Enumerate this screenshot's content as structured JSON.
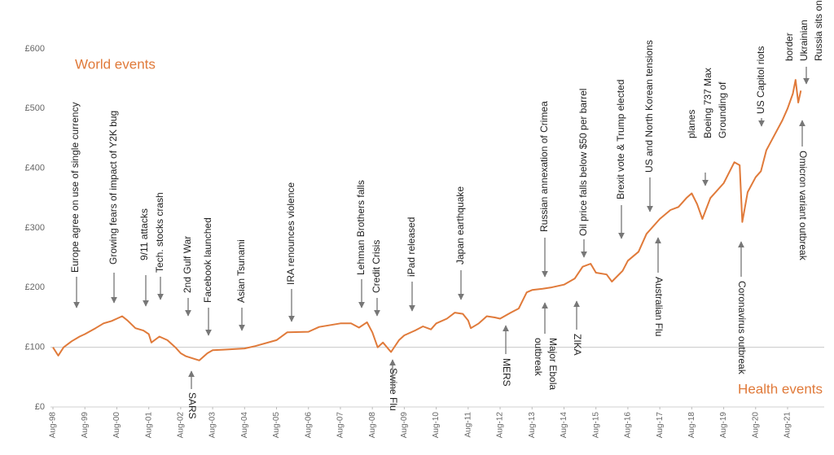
{
  "chart_data": {
    "type": "line",
    "color": "#e07a3a",
    "x": [
      "Aug-98",
      "Oct-98",
      "Dec-98",
      "Mar-99",
      "Jun-99",
      "Aug-99",
      "Dec-99",
      "Mar-00",
      "Jun-00",
      "Aug-00",
      "Oct-00",
      "Dec-00",
      "Mar-01",
      "Jun-01",
      "Aug-01",
      "Sep-01",
      "Dec-01",
      "Mar-02",
      "Jun-02",
      "Aug-02",
      "Oct-02",
      "Mar-03",
      "Jun-03",
      "Aug-03",
      "Dec-03",
      "Aug-04",
      "Dec-04",
      "Aug-05",
      "Dec-05",
      "Aug-06",
      "Dec-06",
      "Aug-07",
      "Dec-07",
      "Mar-08",
      "Jun-08",
      "Aug-08",
      "Oct-08",
      "Dec-08",
      "Mar-09",
      "Jun-09",
      "Aug-09",
      "Dec-09",
      "Mar-10",
      "Jun-10",
      "Aug-10",
      "Dec-10",
      "Mar-11",
      "Jun-11",
      "Aug-11",
      "Sep-11",
      "Dec-11",
      "Mar-12",
      "Jun-12",
      "Aug-12",
      "Dec-12",
      "Mar-13",
      "Jun-13",
      "Aug-13",
      "Dec-13",
      "Mar-14",
      "Aug-14",
      "Dec-14",
      "Mar-15",
      "Jun-15",
      "Aug-15",
      "Dec-15",
      "Feb-16",
      "Jun-16",
      "Aug-16",
      "Dec-16",
      "Mar-17",
      "Aug-17",
      "Dec-17",
      "Mar-18",
      "Jun-18",
      "Aug-18",
      "Oct-18",
      "Dec-18",
      "Mar-19",
      "Aug-19",
      "Dec-19",
      "Feb-20",
      "Mar-20",
      "May-20",
      "Aug-20",
      "Oct-20",
      "Dec-20",
      "Mar-21",
      "Jun-21",
      "Aug-21",
      "Oct-21",
      "Nov-21",
      "Dec-21",
      "Jan-22"
    ],
    "values": [
      100,
      86,
      100,
      110,
      118,
      122,
      132,
      140,
      144,
      148,
      152,
      145,
      132,
      128,
      122,
      108,
      118,
      112,
      100,
      90,
      85,
      78,
      90,
      95,
      96,
      98,
      102,
      112,
      125,
      126,
      134,
      140,
      140,
      133,
      142,
      125,
      100,
      108,
      92,
      112,
      120,
      128,
      135,
      130,
      140,
      148,
      158,
      156,
      145,
      132,
      140,
      152,
      150,
      148,
      158,
      165,
      192,
      196,
      198,
      200,
      205,
      215,
      235,
      240,
      225,
      222,
      210,
      228,
      245,
      260,
      290,
      315,
      330,
      335,
      350,
      358,
      340,
      315,
      350,
      375,
      410,
      405,
      310,
      360,
      385,
      395,
      430,
      455,
      480,
      500,
      525,
      548,
      510,
      530
    ],
    "ylim": [
      0,
      600
    ],
    "yticks": [
      {
        "value": 0,
        "label": "£0"
      },
      {
        "value": 100,
        "label": "£100"
      },
      {
        "value": 200,
        "label": "£200"
      },
      {
        "value": 300,
        "label": "£300"
      },
      {
        "value": 400,
        "label": "£400"
      },
      {
        "value": 500,
        "label": "£500"
      },
      {
        "value": 600,
        "label": "£600"
      }
    ],
    "xticks": [
      "Aug-98",
      "Aug-99",
      "Aug-00",
      "Aug-01",
      "Aug-02",
      "Aug-03",
      "Aug-04",
      "Aug-05",
      "Aug-06",
      "Aug-07",
      "Aug-08",
      "Aug-09",
      "Aug-10",
      "Aug-11",
      "Aug-12",
      "Aug-13",
      "Aug-14",
      "Aug-15",
      "Aug-16",
      "Aug-17",
      "Aug-18",
      "Aug-19",
      "Aug-20",
      "Aug-21"
    ],
    "reference_line": 100,
    "world_title": "World events",
    "health_title": "Health events",
    "world_events": [
      "Europe agree on use of single currency",
      "Growing fears of impact of Y2K bug",
      "9/11 attacks",
      "Tech. stocks crash",
      "2nd Gulf War",
      "Facebook launched",
      "Asian Tsunami",
      "IRA renounces violence",
      "Lehman Brothers falls",
      "Credit Crisis",
      "iPad released",
      "Japan earthquake",
      "Russian annexation of Crimea",
      "Oil price falls below $50 per barrel",
      "Brexit vote & Trump elected",
      "US and North Korean tensions",
      [
        "Grounding of",
        "Boeing 737 Max",
        "planes"
      ],
      "US Capitol riots",
      [
        "Russia sits on",
        "Ukrainian",
        "border"
      ]
    ],
    "health_events": [
      "SARS",
      "Swine Flu",
      "MERS",
      [
        "Major Ebola",
        "outbreak"
      ],
      "ZIKA",
      "Australian Flu",
      "Coronavirus outbreak",
      "Omicron variant outbreak"
    ]
  }
}
